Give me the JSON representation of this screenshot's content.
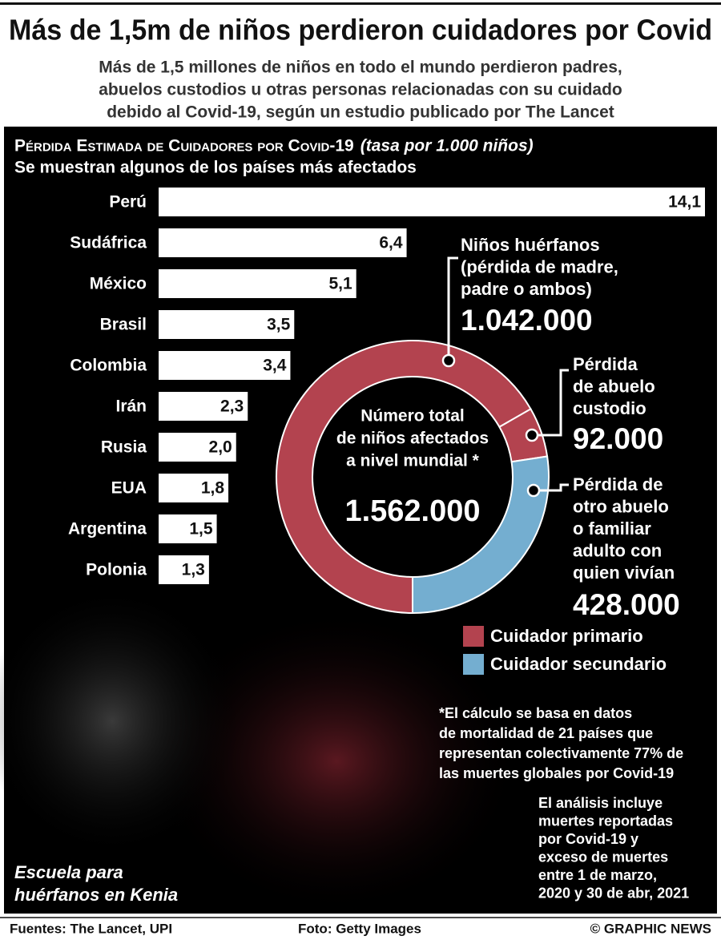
{
  "header": {
    "title": "Más de 1,5m de niños perdieron cuidadores por Covid",
    "subtitle": [
      "Más de 1,5 millones de niños en todo el mundo perdieron padres,",
      "abuelos custodios u otras personas relacionadas con su cuidado",
      "debido al Covid-19, según un estudio publicado por The Lancet"
    ]
  },
  "chart_data": [
    {
      "type": "bar",
      "title": "Pérdida Estimada de Cuidadores por Covid-19",
      "unit_note": "(tasa por 1.000 niños)",
      "subtitle": "Se muestran algunos de los países más afectados",
      "categories": [
        "Perú",
        "Sudáfrica",
        "México",
        "Brasil",
        "Colombia",
        "Irán",
        "Rusia",
        "EUA",
        "Argentina",
        "Polonia"
      ],
      "values": [
        14.1,
        6.4,
        5.1,
        3.5,
        3.4,
        2.3,
        2.0,
        1.8,
        1.5,
        1.3
      ],
      "value_labels": [
        "14,1",
        "6,4",
        "5,1",
        "3,5",
        "3,4",
        "2,3",
        "2,0",
        "1,8",
        "1,5",
        "1,3"
      ],
      "color": "#ffffff"
    },
    {
      "type": "pie",
      "donut": true,
      "center_text": [
        "Número total",
        "de niños afectados",
        "a nivel mundial *"
      ],
      "total": "1.562.000",
      "categories": [
        [
          "Niños huérfanos",
          "(pérdida de madre,",
          "padre o ambos)"
        ],
        [
          "Pérdida",
          "de abuelo",
          "custodio"
        ],
        [
          "Pérdida de",
          "otro abuelo",
          "o familiar",
          "adulto con",
          "quien vivían"
        ]
      ],
      "values": [
        1042000,
        92000,
        428000
      ],
      "value_labels": [
        "1.042.000",
        "92.000",
        "428.000"
      ],
      "colors": [
        "#b3434f",
        "#b3434f",
        "#74aed0"
      ],
      "legend": [
        {
          "name": "Cuidador primario",
          "color": "#b3434f"
        },
        {
          "name": "Cuidador secundario",
          "color": "#74aed0"
        }
      ]
    }
  ],
  "notes": {
    "footnote": [
      "*El cálculo se basa en datos",
      "de mortalidad de 21 países que",
      "representan colectivamente 77% de",
      "las muertes globales por Covid-19"
    ],
    "analysis": [
      "El análisis incluye",
      "muertes reportadas",
      "por Covid-19 y",
      "exceso de muertes",
      "entre 1 de marzo,",
      "2020 y 30 de abr, 2021"
    ],
    "photo_caption": [
      "Escuela para",
      "huérfanos en Kenia"
    ]
  },
  "footer": {
    "sources": "Fuentes: The Lancet, UPI",
    "photo": "Foto: Getty Images",
    "credit": "© GRAPHIC NEWS"
  }
}
